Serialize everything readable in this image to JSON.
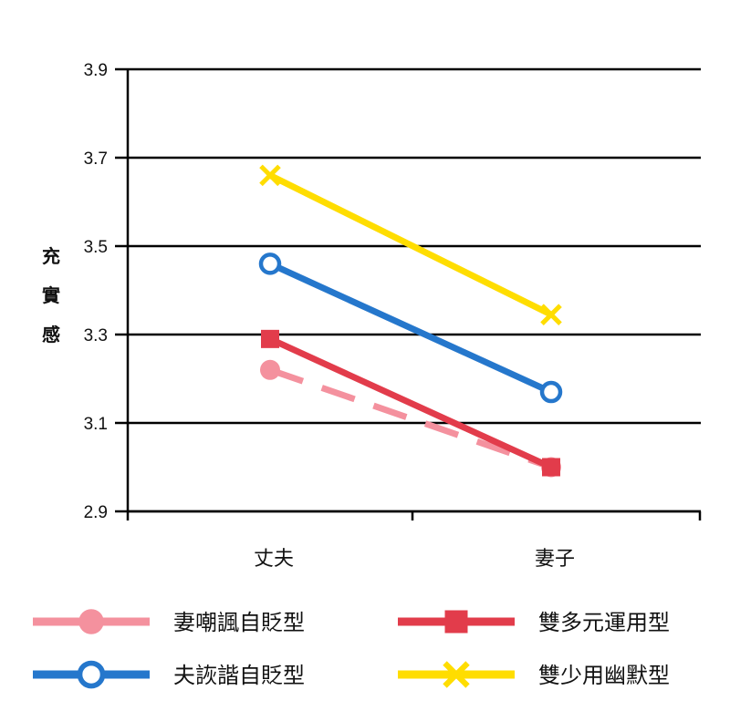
{
  "chart_data": {
    "type": "line",
    "categories": [
      "丈夫",
      "妻子"
    ],
    "ylabel": "充實感",
    "ylim": [
      2.9,
      3.9
    ],
    "yticks": [
      "2.9",
      "3.1",
      "3.3",
      "3.5",
      "3.7",
      "3.9"
    ],
    "grid": true,
    "legend_position": "bottom",
    "series": [
      {
        "name": "妻嘲諷自貶型",
        "values": [
          3.22,
          3.0
        ],
        "color": "#F4919E",
        "marker": "circle-filled",
        "dashed": true
      },
      {
        "name": "夫詼諧自貶型",
        "values": [
          3.46,
          3.17
        ],
        "color": "#2577CC",
        "marker": "circle-open",
        "dashed": false
      },
      {
        "name": "雙多元運用型",
        "values": [
          3.29,
          3.0
        ],
        "color": "#E23C4B",
        "marker": "square",
        "dashed": false
      },
      {
        "name": "雙少用幽默型",
        "values": [
          3.66,
          3.345
        ],
        "color": "#FFDD00",
        "marker": "x",
        "dashed": false
      }
    ]
  }
}
